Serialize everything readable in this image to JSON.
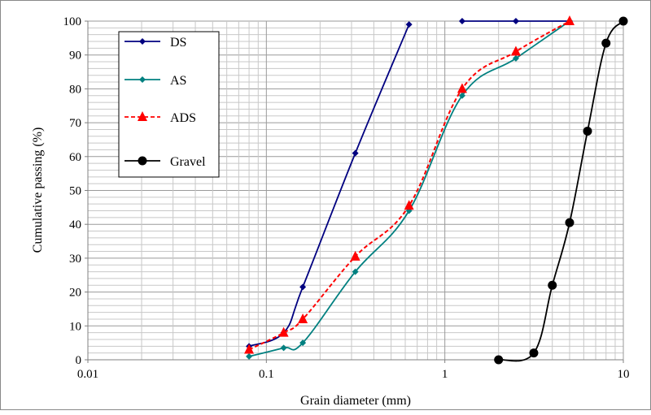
{
  "chart_data": {
    "type": "line",
    "xlabel": "Grain diameter (mm)",
    "ylabel": "Cumulative passing (%)",
    "xscale": "log",
    "xlim": [
      0.01,
      10
    ],
    "ylim": [
      0,
      100
    ],
    "grid": true,
    "legend_position": "top-left",
    "x_ticks": [
      "0.01",
      "0.1",
      "1",
      "10"
    ],
    "y_ticks": [
      "0",
      "10",
      "20",
      "30",
      "40",
      "50",
      "60",
      "70",
      "80",
      "90",
      "100"
    ],
    "series": [
      {
        "name": "DS",
        "color": "#000080",
        "marker": "diamond",
        "dash": false,
        "segments": [
          {
            "x": [
              0.08,
              0.125,
              0.16,
              0.315,
              0.63
            ],
            "y": [
              4,
              8,
              21.5,
              61,
              99
            ]
          },
          {
            "x": [
              1.25,
              2.5,
              5
            ],
            "y": [
              100,
              100,
              100
            ]
          }
        ]
      },
      {
        "name": "AS",
        "color": "#008080",
        "marker": "diamond",
        "dash": false,
        "segments": [
          {
            "x": [
              0.08,
              0.125,
              0.16,
              0.315,
              0.63,
              1.25,
              2.5,
              5
            ],
            "y": [
              1,
              3.5,
              5,
              26,
              44,
              78,
              89,
              100
            ]
          }
        ]
      },
      {
        "name": "ADS",
        "color": "#ff0000",
        "marker": "triangle",
        "dash": true,
        "segments": [
          {
            "x": [
              0.08,
              0.125,
              0.16,
              0.315,
              0.63,
              1.25,
              2.5,
              5
            ],
            "y": [
              3,
              8,
              12,
              30.5,
              45.5,
              80,
              91,
              100
            ]
          }
        ]
      },
      {
        "name": "Gravel",
        "color": "#000000",
        "marker": "circle",
        "dash": false,
        "segments": [
          {
            "x": [
              2,
              3.15,
              4,
              5,
              6.3,
              8,
              10
            ],
            "y": [
              0,
              2,
              22,
              40.5,
              67.5,
              93.5,
              100
            ]
          }
        ]
      }
    ]
  }
}
